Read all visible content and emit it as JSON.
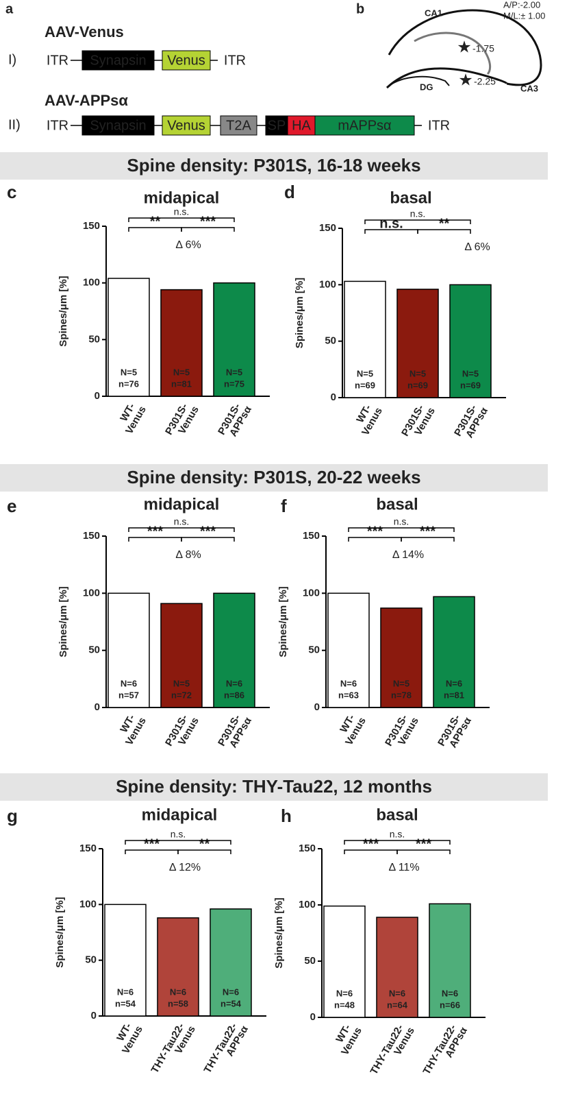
{
  "panel_a": {
    "label": "a",
    "constructs": [
      {
        "roman": "I)",
        "title": "AAV-Venus",
        "elements": [
          "ITR",
          "Synapsin",
          "Venus",
          "ITR"
        ]
      },
      {
        "roman": "II)",
        "title": "AAV-APPsα",
        "elements": [
          "ITR",
          "Synapsin",
          "Venus",
          "T2A",
          "SP",
          "HA",
          "mAPPsα",
          "ITR"
        ]
      }
    ]
  },
  "panel_b": {
    "label": "b",
    "coords": [
      "A/P:-2.00",
      "M/L:± 1.00"
    ],
    "regions": [
      "CA1",
      "CA3",
      "DG"
    ],
    "stars": [
      "-1.75",
      "-2.25"
    ]
  },
  "sections": [
    "Spine density: P301S, 16-18 weeks",
    "Spine density: P301S, 20-22 weeks",
    "Spine density: THY-Tau22, 12 months"
  ],
  "chart_data": [
    {
      "type": "bar",
      "panel": "c",
      "title": "midapical",
      "ylabel": "Spines/μm [%]",
      "categories": [
        [
          "WT-",
          "Venus"
        ],
        [
          "P301S-",
          "Venus"
        ],
        [
          "P301S-",
          "APPsα"
        ]
      ],
      "values": [
        104,
        94,
        100
      ],
      "colors": [
        "#ffffff",
        "#8b1a0e",
        "#0d8a4a"
      ],
      "sample_labels": [
        [
          "N=5",
          "n=76"
        ],
        [
          "N=5",
          "n=81"
        ],
        [
          "N=5",
          "n=75"
        ]
      ],
      "significance": [
        "**",
        "***",
        "n.s."
      ],
      "delta": "Δ 6%",
      "ylim": [
        0,
        150
      ],
      "yticks": [
        0,
        50,
        100,
        150
      ]
    },
    {
      "type": "bar",
      "panel": "d",
      "title": "basal",
      "ylabel": "Spines/μm [%]",
      "categories": [
        [
          "WT-",
          "Venus"
        ],
        [
          "P301S-",
          "Venus"
        ],
        [
          "P301S-",
          "APPsα"
        ]
      ],
      "values": [
        103,
        96,
        100
      ],
      "colors": [
        "#ffffff",
        "#8b1a0e",
        "#0d8a4a"
      ],
      "sample_labels": [
        [
          "N=5",
          "n=69"
        ],
        [
          "N=5",
          "n=69"
        ],
        [
          "N=5",
          "n=69"
        ]
      ],
      "significance": [
        "n.s.",
        "**",
        "n.s."
      ],
      "delta": "Δ 6%",
      "ylim": [
        0,
        150
      ],
      "yticks": [
        0,
        50,
        100,
        150
      ]
    },
    {
      "type": "bar",
      "panel": "e",
      "title": "midapical",
      "ylabel": "Spines/μm [%]",
      "categories": [
        [
          "WT-",
          "Venus"
        ],
        [
          "P301S-",
          "Venus"
        ],
        [
          "P301S-",
          "APPsα"
        ]
      ],
      "values": [
        100,
        91,
        100
      ],
      "colors": [
        "#ffffff",
        "#8b1a0e",
        "#0d8a4a"
      ],
      "sample_labels": [
        [
          "N=6",
          "n=57"
        ],
        [
          "N=5",
          "n=72"
        ],
        [
          "N=6",
          "n=86"
        ]
      ],
      "significance": [
        "***",
        "***",
        "n.s."
      ],
      "delta": "Δ 8%",
      "ylim": [
        0,
        150
      ],
      "yticks": [
        0,
        50,
        100,
        150
      ]
    },
    {
      "type": "bar",
      "panel": "f",
      "title": "basal",
      "ylabel": "Spines/μm [%]",
      "categories": [
        [
          "WT-",
          "Venus"
        ],
        [
          "P301S-",
          "Venus"
        ],
        [
          "P301S-",
          "APPsα"
        ]
      ],
      "values": [
        100,
        87,
        97
      ],
      "colors": [
        "#ffffff",
        "#8b1a0e",
        "#0d8a4a"
      ],
      "sample_labels": [
        [
          "N=6",
          "n=63"
        ],
        [
          "N=5",
          "n=78"
        ],
        [
          "N=6",
          "n=81"
        ]
      ],
      "significance": [
        "***",
        "***",
        "n.s."
      ],
      "delta": "Δ 14%",
      "ylim": [
        0,
        150
      ],
      "yticks": [
        0,
        50,
        100,
        150
      ]
    },
    {
      "type": "bar",
      "panel": "g",
      "title": "midapical",
      "ylabel": "Spines/μm [%]",
      "categories": [
        [
          "WT-",
          "Venus"
        ],
        [
          "THY-Tau22-",
          "Venus"
        ],
        [
          "THY-Tau22-",
          "APPsα"
        ]
      ],
      "values": [
        100,
        88,
        96
      ],
      "colors": [
        "#ffffff",
        "#b0443a",
        "#4fae7a"
      ],
      "sample_labels": [
        [
          "N=6",
          "n=54"
        ],
        [
          "N=6",
          "n=58"
        ],
        [
          "N=6",
          "n=54"
        ]
      ],
      "significance": [
        "***",
        "**",
        "n.s."
      ],
      "delta": "Δ 12%",
      "ylim": [
        0,
        150
      ],
      "yticks": [
        0,
        50,
        100,
        150
      ]
    },
    {
      "type": "bar",
      "panel": "h",
      "title": "basal",
      "ylabel": "Spines/μm [%]",
      "categories": [
        [
          "WT-",
          "Venus"
        ],
        [
          "THY-Tau22-",
          "Venus"
        ],
        [
          "THY-Tau22-",
          "APPsα"
        ]
      ],
      "values": [
        99,
        89,
        101
      ],
      "colors": [
        "#ffffff",
        "#b0443a",
        "#4fae7a"
      ],
      "sample_labels": [
        [
          "N=6",
          "n=48"
        ],
        [
          "N=6",
          "n=64"
        ],
        [
          "N=6",
          "n=66"
        ]
      ],
      "significance": [
        "***",
        "***",
        "n.s."
      ],
      "delta": "Δ 11%",
      "ylim": [
        0,
        150
      ],
      "yticks": [
        0,
        50,
        100,
        150
      ]
    }
  ]
}
